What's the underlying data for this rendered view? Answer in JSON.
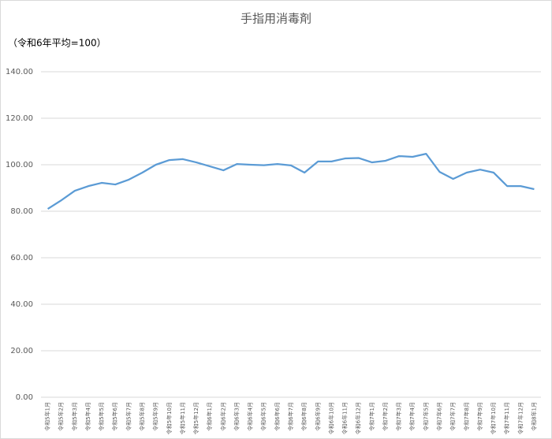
{
  "chart_data": {
    "type": "line",
    "title": "手指用消毒剤",
    "subtitle": "（令和6年平均=100）",
    "categories": [
      "令和5年1月",
      "令和5年2月",
      "令和5年3月",
      "令和5年4月",
      "令和5年5月",
      "令和5年6月",
      "令和5年7月",
      "令和5年8月",
      "令和5年9月",
      "令和5年10月",
      "令和5年11月",
      "令和5年12月",
      "令和6年1月",
      "令和6年2月",
      "令和6年3月",
      "令和6年4月",
      "令和6年5月",
      "令和6年6月",
      "令和6年7月",
      "令和6年8月",
      "令和6年9月",
      "令和6年10月",
      "令和6年11月",
      "令和6年12月",
      "令和7年1月",
      "令和7年2月",
      "令和7年3月",
      "令和7年4月",
      "令和7年5月",
      "令和7年6月",
      "令和7年7月",
      "令和7年8月",
      "令和7年9月",
      "令和7年10月",
      "令和7年11月",
      "令和7年12月",
      "令和8年1月"
    ],
    "values": [
      81.0,
      84.7,
      88.8,
      90.8,
      92.2,
      91.5,
      93.6,
      96.6,
      100.0,
      102.0,
      102.4,
      101.0,
      99.3,
      97.6,
      100.3,
      100.0,
      99.8,
      100.3,
      99.7,
      96.6,
      101.4,
      101.4,
      102.7,
      102.9,
      101.0,
      101.7,
      103.7,
      103.4,
      104.7,
      96.9,
      93.9,
      96.6,
      97.9,
      96.6,
      90.8,
      90.8,
      89.5
    ],
    "color": "#5b9bd5",
    "ylim": [
      0,
      140
    ],
    "yticks": [
      {
        "value": 0,
        "label": "0.00"
      },
      {
        "value": 20,
        "label": "20.00"
      },
      {
        "value": 40,
        "label": "40.00"
      },
      {
        "value": 60,
        "label": "60.00"
      },
      {
        "value": 80,
        "label": "80.00"
      },
      {
        "value": 100,
        "label": "100.00"
      },
      {
        "value": 120,
        "label": "120.00"
      },
      {
        "value": 140,
        "label": "140.00"
      }
    ],
    "grid": true
  }
}
